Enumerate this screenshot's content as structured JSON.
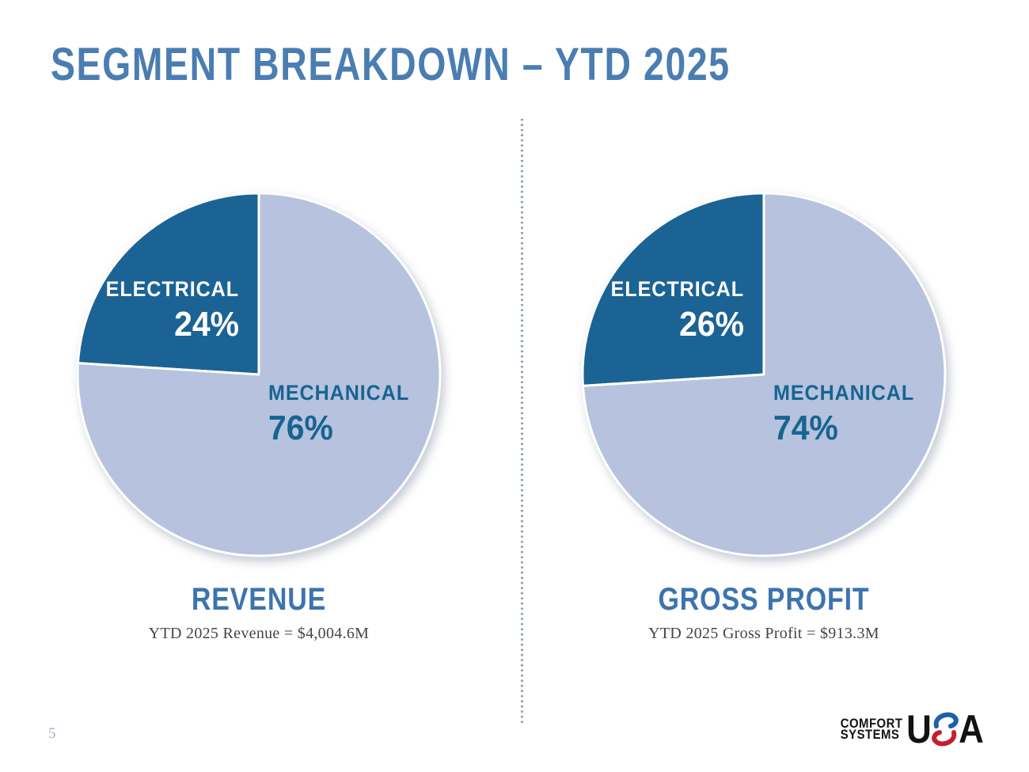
{
  "page": {
    "title": "SEGMENT BREAKDOWN – YTD 2025",
    "page_number": "5"
  },
  "colors": {
    "title_blue": "#4a7db2",
    "chart_title_blue": "#3c74ae",
    "dark_slice": "#1b6394",
    "light_slice": "#b6c2de",
    "mechanical_text": "#176490",
    "divider_dots": "#8ca3b6",
    "caption_text": "#454545",
    "page_number": "#9cb1c5",
    "logo_blue": "#1d5fa9",
    "logo_red": "#c4202e"
  },
  "chart_data": [
    {
      "type": "pie",
      "title": "REVENUE",
      "caption": "YTD 2025 Revenue = $4,004.6M",
      "start_angle": "12-oclock",
      "direction": "counterclockwise",
      "slices": [
        {
          "label": "ELECTRICAL",
          "value": 24,
          "pct_label": "24%",
          "color": "#1b6394",
          "label_color": "#ffffff"
        },
        {
          "label": "MECHANICAL",
          "value": 76,
          "pct_label": "76%",
          "color": "#b6c2de",
          "label_color": "#176490"
        }
      ]
    },
    {
      "type": "pie",
      "title": "GROSS PROFIT",
      "caption": "YTD 2025 Gross Profit = $913.3M",
      "start_angle": "12-oclock",
      "direction": "counterclockwise",
      "slices": [
        {
          "label": "ELECTRICAL",
          "value": 26,
          "pct_label": "26%",
          "color": "#1b6394",
          "label_color": "#ffffff"
        },
        {
          "label": "MECHANICAL",
          "value": 74,
          "pct_label": "74%",
          "color": "#b6c2de",
          "label_color": "#176490"
        }
      ]
    }
  ],
  "logo": {
    "line1": "COMFORT",
    "line2": "SYSTEMS",
    "usa_u": "U",
    "usa_a": "A",
    "s_icon": "s-swoosh-icon"
  }
}
